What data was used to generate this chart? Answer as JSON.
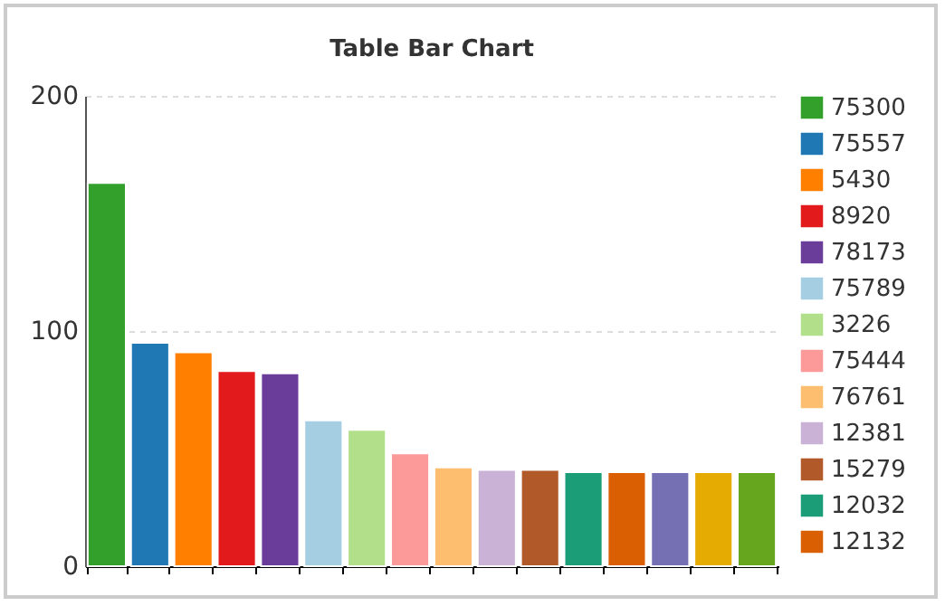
{
  "chart_data": {
    "type": "bar",
    "title": "Table Bar Chart",
    "categories": [
      null,
      null,
      null,
      null,
      null,
      null,
      null,
      null,
      null,
      null,
      null,
      null,
      null,
      null,
      null,
      null
    ],
    "series": [
      {
        "name": "75300",
        "color": "#33a02c",
        "values": [
          163,
          null,
          null,
          null,
          null,
          null,
          null,
          null,
          null,
          null,
          null,
          null,
          null,
          null,
          null,
          null
        ]
      },
      {
        "name": "75557",
        "color": "#1f78b4",
        "values": [
          null,
          95,
          null,
          null,
          null,
          null,
          null,
          null,
          null,
          null,
          null,
          null,
          null,
          null,
          null,
          null
        ]
      },
      {
        "name": "5430",
        "color": "#ff7f00",
        "values": [
          null,
          null,
          91,
          null,
          null,
          null,
          null,
          null,
          null,
          null,
          null,
          null,
          null,
          null,
          null,
          null
        ]
      },
      {
        "name": "8920",
        "color": "#e31a1c",
        "values": [
          null,
          null,
          null,
          83,
          null,
          null,
          null,
          null,
          null,
          null,
          null,
          null,
          null,
          null,
          null,
          null
        ]
      },
      {
        "name": "78173",
        "color": "#6a3d9a",
        "values": [
          null,
          null,
          null,
          null,
          82,
          null,
          null,
          null,
          null,
          null,
          null,
          null,
          null,
          null,
          null,
          null
        ]
      },
      {
        "name": "75789",
        "color": "#a6cee3",
        "values": [
          null,
          null,
          null,
          null,
          null,
          62,
          null,
          null,
          null,
          null,
          null,
          null,
          null,
          null,
          null,
          null
        ]
      },
      {
        "name": "3226",
        "color": "#b2df8a",
        "values": [
          null,
          null,
          null,
          null,
          null,
          null,
          58,
          null,
          null,
          null,
          null,
          null,
          null,
          null,
          null,
          null
        ]
      },
      {
        "name": "75444",
        "color": "#fb9a99",
        "values": [
          null,
          null,
          null,
          null,
          null,
          null,
          null,
          48,
          null,
          null,
          null,
          null,
          null,
          null,
          null,
          null
        ]
      },
      {
        "name": "76761",
        "color": "#fdbf6f",
        "values": [
          null,
          null,
          null,
          null,
          null,
          null,
          null,
          null,
          42,
          null,
          null,
          null,
          null,
          null,
          null,
          null
        ]
      },
      {
        "name": "12381",
        "color": "#cab2d6",
        "values": [
          null,
          null,
          null,
          null,
          null,
          null,
          null,
          null,
          null,
          41,
          null,
          null,
          null,
          null,
          null,
          null
        ]
      },
      {
        "name": "15279",
        "color": "#b15928",
        "values": [
          null,
          null,
          null,
          null,
          null,
          null,
          null,
          null,
          null,
          null,
          41,
          null,
          null,
          null,
          null,
          null
        ]
      },
      {
        "name": "12032",
        "color": "#1b9e77",
        "values": [
          null,
          null,
          null,
          null,
          null,
          null,
          null,
          null,
          null,
          null,
          null,
          40,
          null,
          null,
          null,
          null
        ]
      },
      {
        "name": "12132",
        "color": "#d95f02",
        "values": [
          null,
          null,
          null,
          null,
          null,
          null,
          null,
          null,
          null,
          null,
          null,
          null,
          40,
          null,
          null,
          null
        ]
      },
      {
        "color": "#7570b3",
        "values": [
          null,
          null,
          null,
          null,
          null,
          null,
          null,
          null,
          null,
          null,
          null,
          null,
          null,
          40,
          null,
          null
        ]
      },
      {
        "color": "#e6ab02",
        "values": [
          null,
          null,
          null,
          null,
          null,
          null,
          null,
          null,
          null,
          null,
          null,
          null,
          null,
          null,
          40,
          null
        ]
      },
      {
        "color": "#66a61e",
        "values": [
          null,
          null,
          null,
          null,
          null,
          null,
          null,
          null,
          null,
          null,
          null,
          null,
          null,
          null,
          null,
          40
        ]
      }
    ],
    "ylim": [
      0,
      200
    ],
    "yticks": [
      0,
      100,
      200
    ],
    "grid": "y",
    "legend": "right",
    "tick_labels": "y"
  }
}
